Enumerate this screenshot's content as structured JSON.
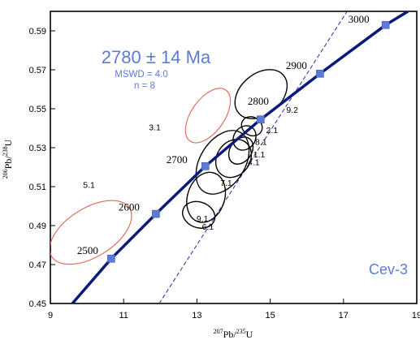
{
  "chart_data": {
    "type": "scatter",
    "title": "",
    "xlabel": {
      "sup": "207",
      "main": "Pb/",
      "sup2": "235",
      "main2": "U"
    },
    "ylabel": {
      "sup": "206",
      "main": "Pb/",
      "sup2": "238",
      "main2": "U"
    },
    "xlim": [
      9,
      19
    ],
    "ylim": [
      0.45,
      0.6
    ],
    "xticks": [
      9,
      11,
      13,
      15,
      17,
      19
    ],
    "xtick_labels": [
      "9",
      "11",
      "13",
      "15",
      "17",
      "19"
    ],
    "yticks": [
      0.45,
      0.47,
      0.49,
      0.51,
      0.53,
      0.55,
      0.57,
      0.59
    ],
    "ytick_labels": [
      "0.45",
      "0.47",
      "0.49",
      "0.51",
      "0.53",
      "0.55",
      "0.57",
      "0.59"
    ],
    "concordia": {
      "color": "#0b1a7a",
      "points": [
        [
          9.6,
          0.45
        ],
        [
          10.66,
          0.473
        ],
        [
          11.88,
          0.496
        ],
        [
          13.23,
          0.5205
        ],
        [
          14.74,
          0.5445
        ],
        [
          16.36,
          0.568
        ],
        [
          18.15,
          0.593
        ],
        [
          18.76,
          0.6
        ]
      ]
    },
    "age_markers": [
      {
        "label": "2500",
        "x": 10.66,
        "y": 0.473
      },
      {
        "label": "2600",
        "x": 11.88,
        "y": 0.496
      },
      {
        "label": "2700",
        "x": 13.23,
        "y": 0.5205
      },
      {
        "label": "2800",
        "x": 14.74,
        "y": 0.5445
      },
      {
        "label": "2900",
        "x": 16.36,
        "y": 0.568
      },
      {
        "label": "3000",
        "x": 18.15,
        "y": 0.593
      }
    ],
    "discordia": {
      "color": "#3a3ab0",
      "points": [
        [
          11.97,
          0.45
        ],
        [
          17.1,
          0.6
        ]
      ]
    },
    "age_result": {
      "age": "2780 ± 14 Ma",
      "mswd": "MSWD = 4.0",
      "n": "n = 8"
    },
    "sample": "Cev-3",
    "analyses": [
      {
        "label": "5.1",
        "x": 10.1,
        "y": 0.4865,
        "rx": 1.25,
        "ry": 0.0125,
        "angle": -32,
        "color": "#e07060",
        "included": false
      },
      {
        "label": "3.1",
        "x": 13.3,
        "y": 0.5465,
        "rx": 0.85,
        "ry": 0.0085,
        "angle": -55,
        "color": "#e07060",
        "included": false
      },
      {
        "label": "9.2",
        "x": 14.75,
        "y": 0.5575,
        "rx": 0.8,
        "ry": 0.0105,
        "angle": -40,
        "color": "#000000",
        "included": true
      },
      {
        "label": "2.1",
        "x": 14.5,
        "y": 0.541,
        "rx": 0.25,
        "ry": 0.0055,
        "angle": -60,
        "color": "#000000",
        "included": true
      },
      {
        "label": "8.1",
        "x": 14.3,
        "y": 0.535,
        "rx": 0.35,
        "ry": 0.0055,
        "angle": -55,
        "color": "#000000",
        "included": true
      },
      {
        "label": "1.1",
        "x": 14.2,
        "y": 0.5285,
        "rx": 0.4,
        "ry": 0.0055,
        "angle": -55,
        "color": "#000000",
        "included": true
      },
      {
        "label": "4.1",
        "x": 14.0,
        "y": 0.5245,
        "rx": 0.55,
        "ry": 0.0085,
        "angle": -55,
        "color": "#000000",
        "included": true
      },
      {
        "label": "7.1",
        "x": 13.7,
        "y": 0.5225,
        "rx": 0.95,
        "ry": 0.0115,
        "angle": -58,
        "color": "#000000",
        "included": true
      },
      {
        "label": "9.1",
        "x": 13.25,
        "y": 0.5045,
        "rx": 0.7,
        "ry": 0.0095,
        "angle": -72,
        "color": "#000000",
        "included": true
      },
      {
        "label": "6.1",
        "x": 13.05,
        "y": 0.4955,
        "rx": 0.35,
        "ry": 0.0085,
        "angle": -70,
        "color": "#000000",
        "included": true
      }
    ]
  }
}
